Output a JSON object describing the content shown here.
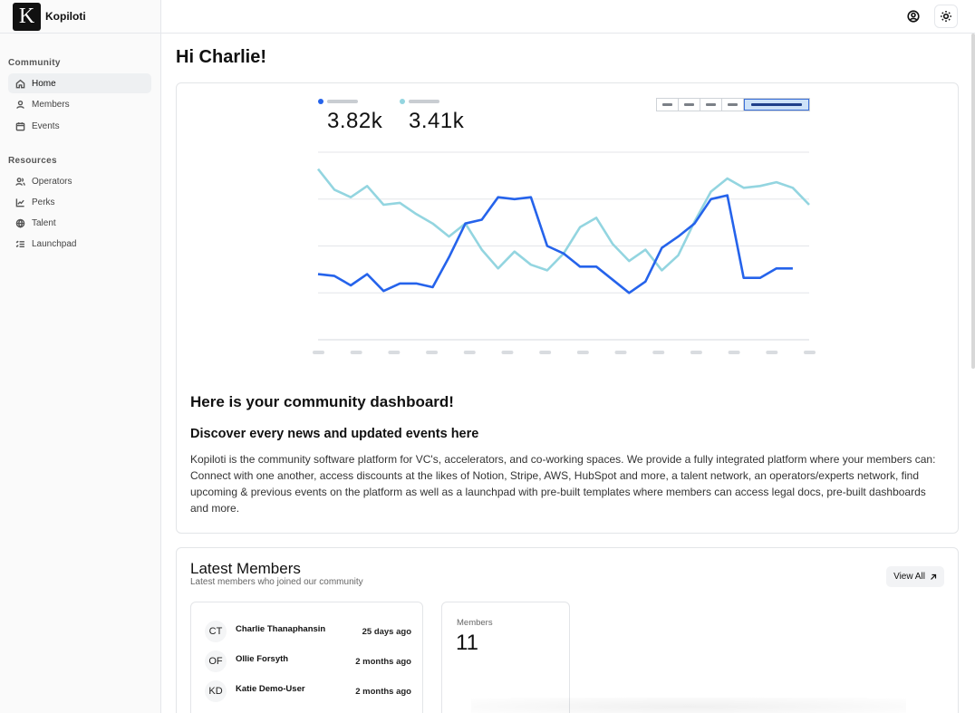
{
  "app": {
    "name": "Kopiloti",
    "logo_letter": "K"
  },
  "sidebar": {
    "sections": [
      {
        "title": "Community",
        "items": [
          {
            "label": "Home",
            "icon": "home-icon",
            "active": true
          },
          {
            "label": "Members",
            "icon": "user-icon"
          },
          {
            "label": "Events",
            "icon": "calendar-icon"
          }
        ]
      },
      {
        "title": "Resources",
        "items": [
          {
            "label": "Operators",
            "icon": "users-icon"
          },
          {
            "label": "Perks",
            "icon": "chart-line-icon"
          },
          {
            "label": "Talent",
            "icon": "globe-icon"
          },
          {
            "label": "Launchpad",
            "icon": "list-checks-icon"
          }
        ]
      }
    ]
  },
  "topbar": {
    "icons": [
      "user-circle-icon",
      "sun-icon"
    ]
  },
  "main": {
    "greeting": "Hi Charlie!",
    "dashboard_title": "Here is your community dashboard!",
    "dashboard_subtitle": "Discover every news and updated events here",
    "description": "Kopiloti is the community software platform for VC's, accelerators, and co-working spaces. We provide a fully integrated platform where your members can: Connect with one another, access discounts at the likes of Notion, Stripe, AWS, HubSpot and more, a talent network, an operators/experts network, find upcoming & previous events on the platform as well as a launchpad with pre-built templates where members can access legal docs, pre-built dashboards and more."
  },
  "chart_data": {
    "type": "line",
    "stats": [
      {
        "value": "3.82k",
        "color": "#2563eb"
      },
      {
        "value": "3.41k",
        "color": "#93d5e0"
      }
    ],
    "range_buttons": 5,
    "selected_range_index": 4,
    "ylim": [
      0,
      100
    ],
    "grid": true,
    "x": [
      0,
      1,
      2,
      3,
      4,
      5,
      6,
      7,
      8,
      9,
      10,
      11,
      12,
      13,
      14,
      15,
      16,
      17,
      18,
      19,
      20,
      21,
      22,
      23,
      24,
      25,
      26,
      27,
      28,
      29,
      30
    ],
    "series": [
      {
        "color": "#2563eb",
        "values": [
          35,
          34,
          29,
          35,
          26,
          30,
          30,
          28,
          44,
          62,
          64,
          76,
          75,
          76,
          50,
          46,
          39,
          39,
          32,
          25,
          31,
          49,
          55,
          62,
          75,
          77,
          33,
          33,
          38,
          38,
          null
        ]
      },
      {
        "color": "#93d5e0",
        "values": [
          91,
          80,
          76,
          82,
          72,
          73,
          67,
          62,
          55,
          62,
          48,
          38,
          47,
          40,
          37,
          46,
          60,
          65,
          51,
          42,
          48,
          37,
          45,
          63,
          79,
          86,
          81,
          82,
          84,
          81,
          72
        ]
      }
    ]
  },
  "members": {
    "title": "Latest Members",
    "subtitle": "Latest members who joined our community",
    "view_all_label": "View All",
    "rows": [
      {
        "initials": "CT",
        "name": "Charlie Thanaphansin",
        "joined": "25 days ago"
      },
      {
        "initials": "OF",
        "name": "Ollie Forsyth",
        "joined": "2 months ago"
      },
      {
        "initials": "KD",
        "name": "Katie Demo-User",
        "joined": "2 months ago"
      }
    ],
    "count_label": "Members",
    "count_value": "11"
  }
}
